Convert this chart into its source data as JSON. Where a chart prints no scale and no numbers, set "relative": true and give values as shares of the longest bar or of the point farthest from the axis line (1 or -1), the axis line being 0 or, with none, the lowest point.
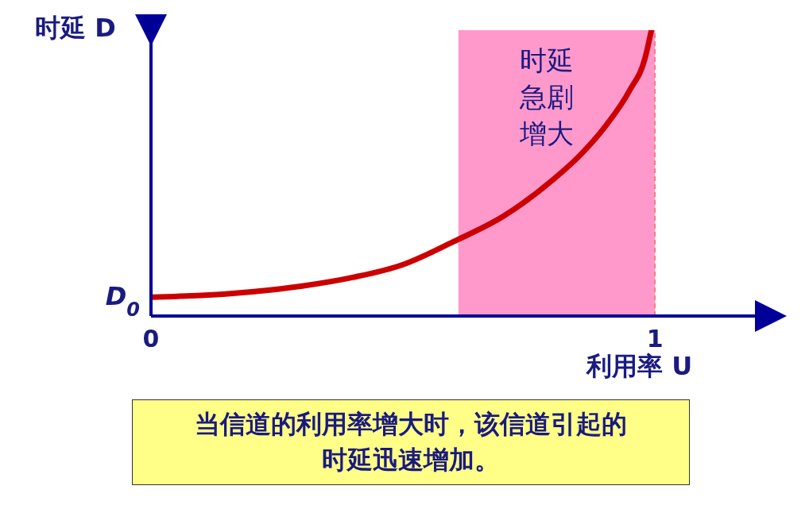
{
  "chart_data": {
    "type": "line",
    "xlabel": "利用率 U",
    "ylabel": "时延 D",
    "relative": true,
    "x": [
      0,
      0.1,
      0.2,
      0.3,
      0.4,
      0.5,
      0.6,
      0.7,
      0.8,
      0.85,
      0.9,
      0.95,
      0.98,
      0.993
    ],
    "series": [
      {
        "color": "#cc0000",
        "values": [
          0.066,
          0.072,
          0.085,
          0.105,
          0.135,
          0.18,
          0.26,
          0.35,
          0.48,
          0.56,
          0.66,
          0.79,
          0.9,
          1
        ]
      }
    ],
    "xlim": [
      0,
      1.23
    ],
    "xticks": [
      0,
      1
    ],
    "bands": [
      {
        "axis": "x",
        "from": 0.61,
        "to": 1,
        "label": "时延急剧增大",
        "color": "#ff99cc"
      }
    ],
    "ref_lines": [
      {
        "axis": "x",
        "value": 1,
        "color": "#ff3333",
        "line_style": "dashed"
      }
    ],
    "annotations": [
      {
        "text": "D$_{0}$",
        "x": 0,
        "y": 0.066
      },
      "当信道的利用率增大时，该信道引起的时延迅速增加。"
    ]
  }
}
